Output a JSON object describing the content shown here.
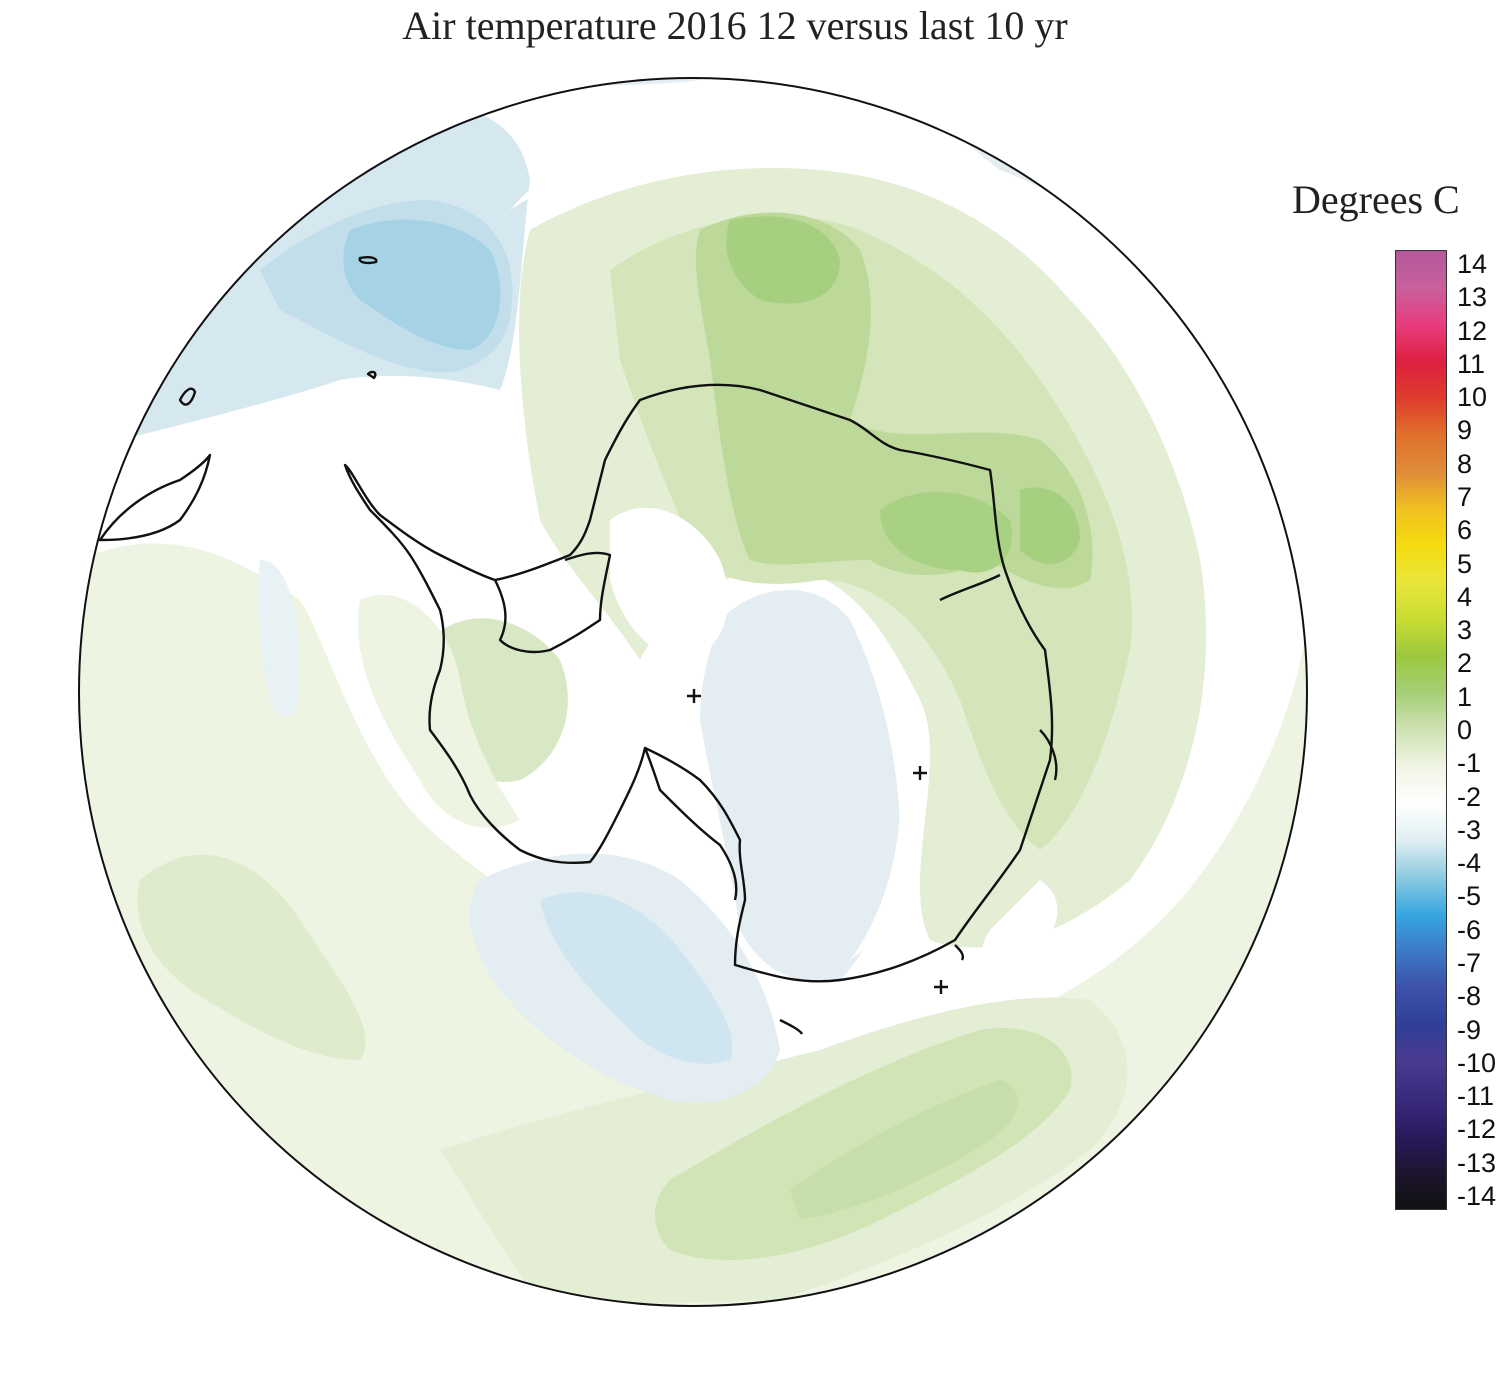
{
  "title": "Air temperature 2016 12 versus last 10 yr",
  "legend": {
    "title": "Degrees C",
    "ticks": [
      "14",
      "13",
      "12",
      "11",
      "10",
      "9",
      "8",
      "7",
      "6",
      "5",
      "4",
      "3",
      "2",
      "1",
      "0",
      "-1",
      "-2",
      "-3",
      "-4",
      "-5",
      "-6",
      "-7",
      "-8",
      "-9",
      "-10",
      "-11",
      "-12",
      "-13",
      "-14"
    ],
    "range": [
      -14,
      14
    ],
    "colors": [
      "#111111",
      "#1e1530",
      "#2a1a5e",
      "#3a2a7e",
      "#4a3a90",
      "#2f3f96",
      "#3c52a8",
      "#3d7ac6",
      "#37a7e0",
      "#8ccbe0",
      "#dfeef2",
      "#ffffff",
      "#f0f4e4",
      "#cfe2b4",
      "#a6cf78",
      "#9cc83e",
      "#c8dc32",
      "#e9e63a",
      "#f4dc10",
      "#f0c020",
      "#df8c38",
      "#e0702c",
      "#df3c2c",
      "#de2040",
      "#e83c7e",
      "#c8609c",
      "#b4589a"
    ]
  },
  "map": {
    "projection": "south-polar-stereographic",
    "markers": [
      "+",
      "+",
      "+"
    ]
  }
}
